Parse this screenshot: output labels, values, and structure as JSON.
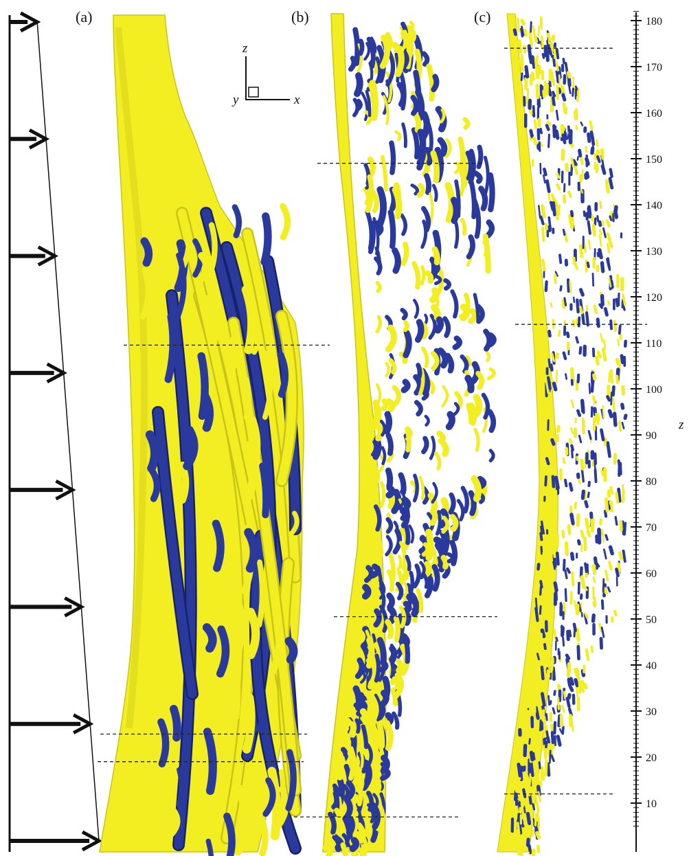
{
  "panels": [
    {
      "label": "(a)",
      "cut_z": [
        109.5,
        25,
        19
      ]
    },
    {
      "label": "(b)",
      "cut_z": [
        149,
        50.5,
        7
      ]
    },
    {
      "label": "(c)",
      "cut_z": [
        174,
        114,
        12
      ]
    }
  ],
  "axes_glyph": {
    "vertical": "z",
    "horizontal": "x",
    "depth": "y"
  },
  "scale_axis": {
    "title": "z",
    "min": 5,
    "max": 182,
    "ticks": [
      10,
      20,
      30,
      40,
      50,
      60,
      70,
      80,
      90,
      100,
      110,
      120,
      130,
      140,
      150,
      160,
      170,
      180
    ]
  },
  "profile_arrows": {
    "count": 8
  },
  "colors": {
    "yellow": "#f2ee22",
    "yellow_dark": "#c9c41a",
    "blue": "#2a3a9c",
    "blue_dark": "#17226b",
    "ink": "#111111"
  }
}
